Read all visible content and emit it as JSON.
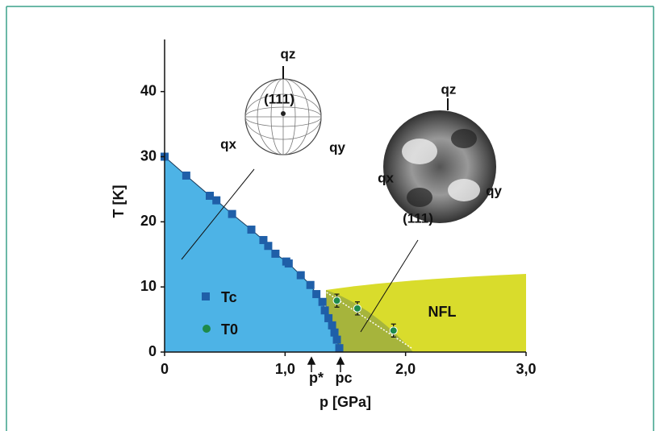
{
  "chart_data": {
    "type": "scatter",
    "x_label": "p [GPa]",
    "y_label": "T [K]",
    "xlim": [
      0,
      3
    ],
    "ylim": [
      0,
      48
    ],
    "xticks": [
      0,
      {
        "value": 1,
        "label": "1,0"
      },
      {
        "value": 2,
        "label": "2,0"
      },
      {
        "value": 3,
        "label": "3,0"
      }
    ],
    "yticks": [
      0,
      10,
      20,
      30,
      40
    ],
    "series": [
      {
        "name": "Tc",
        "color": "#1f5fa8",
        "marker": "square",
        "x": [
          0,
          0.18,
          0.375,
          0.43,
          0.56,
          0.72,
          0.82,
          0.86,
          0.92,
          1.01,
          1.03,
          1.13,
          1.21,
          1.26,
          1.31,
          1.33,
          1.36,
          1.39,
          1.41,
          1.43,
          1.45
        ],
        "values": [
          30,
          27.1,
          24,
          23.3,
          21.2,
          18.8,
          17.2,
          16.3,
          15.1,
          13.9,
          13.6,
          11.8,
          10.3,
          8.9,
          7.7,
          6.4,
          5.2,
          4.1,
          3,
          1.9,
          0.6
        ]
      },
      {
        "name": "T0",
        "color": "#1e8a4a",
        "marker": "circle",
        "x": [
          1.43,
          1.6,
          1.9
        ],
        "values": [
          7.9,
          6.7,
          3.3
        ],
        "errors": [
          1,
          1,
          1
        ]
      }
    ],
    "annotations": [
      "NFL",
      "p*",
      "pc",
      "qz",
      "(111)",
      "qx",
      "qy",
      "qz",
      "qx",
      "qy",
      "(111)"
    ]
  }
}
